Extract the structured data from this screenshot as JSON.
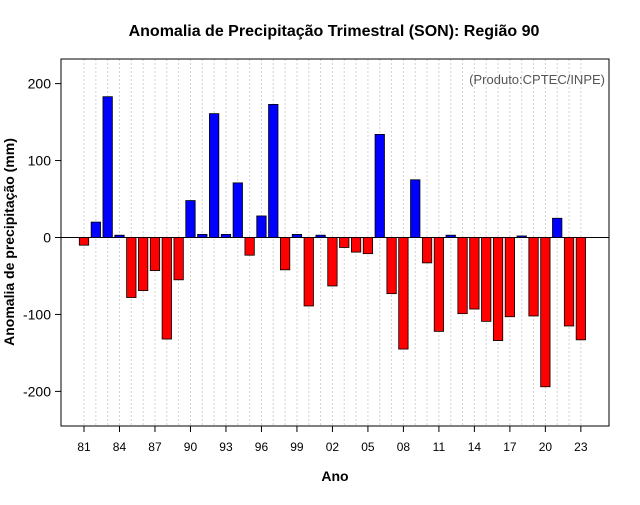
{
  "chart_data": {
    "type": "bar",
    "title": "Anomalia de Precipitação Trimestral (SON): Região 90",
    "xlabel": "Ano",
    "ylabel": "Anomalia de precipitação (mm)",
    "annotation": "(Produto:CPTEC/INPE)",
    "ylim": [
      -245,
      232
    ],
    "yticks": [
      -200,
      -100,
      0,
      100,
      200
    ],
    "grid": "vertical dotted",
    "positive_color": "#0000ff",
    "negative_color": "#ff0000",
    "x": [
      1981,
      1982,
      1983,
      1984,
      1985,
      1986,
      1987,
      1988,
      1989,
      1990,
      1991,
      1992,
      1993,
      1994,
      1995,
      1996,
      1997,
      1998,
      1999,
      2000,
      2001,
      2002,
      2003,
      2004,
      2005,
      2006,
      2007,
      2008,
      2009,
      2010,
      2011,
      2012,
      2013,
      2014,
      2015,
      2016,
      2017,
      2018,
      2019,
      2020,
      2021,
      2022,
      2023
    ],
    "values": [
      -10,
      20,
      183,
      3,
      -78,
      -69,
      -43,
      -132,
      -55,
      48,
      4,
      161,
      4,
      71,
      -23,
      28,
      173,
      -42,
      4,
      -89,
      3,
      -63,
      -13,
      -19,
      -21,
      134,
      -73,
      -145,
      75,
      -33,
      -122,
      3,
      -99,
      -93,
      -109,
      -134,
      -103,
      2,
      -102,
      -194,
      25,
      -115,
      -133
    ],
    "xtick_labels": [
      "81",
      "84",
      "87",
      "90",
      "93",
      "96",
      "99",
      "02",
      "05",
      "08",
      "11",
      "14",
      "17",
      "20",
      "23"
    ],
    "xtick_years": [
      1981,
      1984,
      1987,
      1990,
      1993,
      1996,
      1999,
      2002,
      2005,
      2008,
      2011,
      2014,
      2017,
      2020,
      2023
    ]
  }
}
